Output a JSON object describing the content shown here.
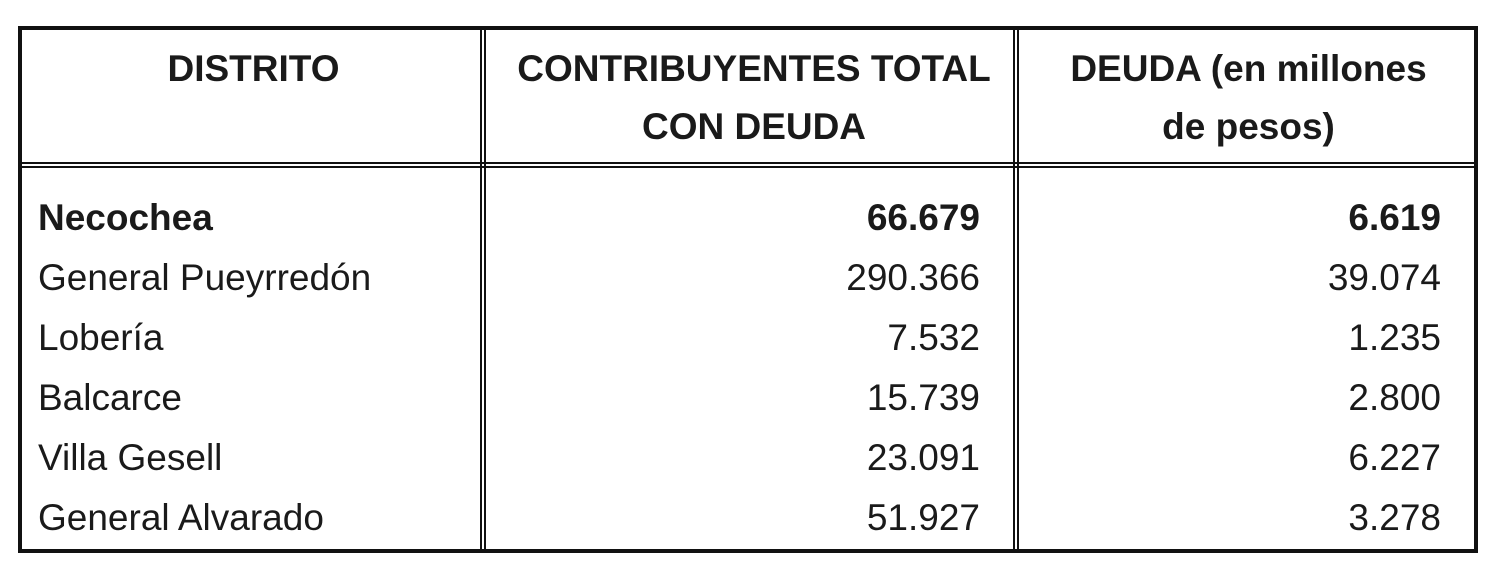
{
  "table": {
    "headers": {
      "distrito": "DISTRITO",
      "contribuyentes": [
        "CONTRIBUYENTES TOTAL",
        "CON DEUDA"
      ],
      "deuda": [
        "DEUDA (en millones",
        "de pesos)"
      ]
    },
    "rows": [
      {
        "distrito": "Necochea",
        "contribuyentes": "66.679",
        "deuda": "6.619",
        "bold": true
      },
      {
        "distrito": "General Pueyrredón",
        "contribuyentes": "290.366",
        "deuda": "39.074",
        "bold": false
      },
      {
        "distrito": "Lobería",
        "contribuyentes": "7.532",
        "deuda": "1.235",
        "bold": false
      },
      {
        "distrito": "Balcarce",
        "contribuyentes": "15.739",
        "deuda": "2.800",
        "bold": false
      },
      {
        "distrito": "Villa Gesell",
        "contribuyentes": "23.091",
        "deuda": "6.227",
        "bold": false
      },
      {
        "distrito": "General Alvarado",
        "contribuyentes": "51.927",
        "deuda": "3.278",
        "bold": false
      }
    ]
  }
}
